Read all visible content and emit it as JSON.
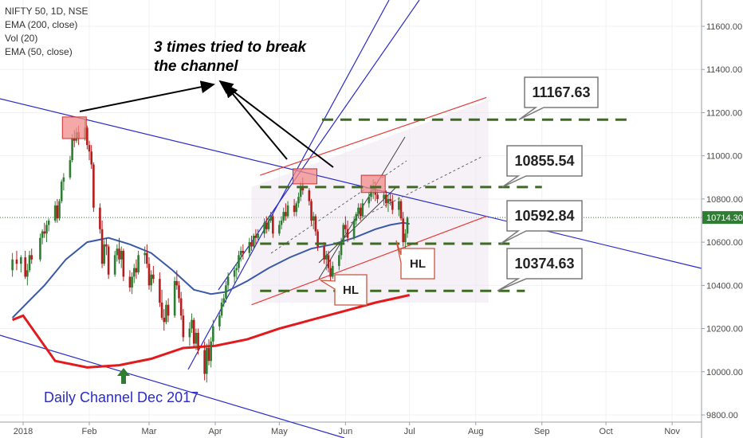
{
  "symbol_line": "NIFTY 50, 1D, NSE",
  "indicators": [
    "EMA (200, close)",
    "Vol (20)",
    "EMA (50, close)"
  ],
  "annotation": [
    "3 times tried to break",
    "the channel"
  ],
  "channel_label": "Daily Channel Dec 2017",
  "hl_labels": [
    "HL",
    "HL"
  ],
  "colors": {
    "up": "#2e7d32",
    "down": "#b71c1c",
    "ema200": "#e31a1c",
    "ema50": "#3a5aa8",
    "blue_lines": "#2b2bc8",
    "red_channel": "#e53935",
    "green_levels": "#3d6b22",
    "box_fill": "#ece6ee",
    "last_price_bg": "#2e7d32"
  },
  "chart_data": {
    "type": "candlestick",
    "y_axis": {
      "side": "right",
      "range": [
        9780,
        11700
      ],
      "ticks": [
        "11600.00",
        "11400.00",
        "11200.00",
        "11000.00",
        "10800.00",
        "10600.00",
        "10400.00",
        "10200.00",
        "10000.00",
        "9800.00"
      ]
    },
    "x_axis": {
      "ticks": [
        "2018",
        "Feb",
        "Mar",
        "Apr",
        "May",
        "Jun",
        "Jul",
        "Aug",
        "Sep",
        "Oct",
        "Nov"
      ],
      "tick_days": [
        0,
        31,
        59,
        90,
        120,
        151,
        181,
        212,
        243,
        273,
        304
      ]
    },
    "last_price": "10714.30",
    "level_callouts": [
      {
        "label": "11167.63",
        "value": 11167.63
      },
      {
        "label": "10855.54",
        "value": 10855.54
      },
      {
        "label": "10592.84",
        "value": 10592.84
      },
      {
        "label": "10374.63",
        "value": 10374.63
      }
    ],
    "green_levels": [
      {
        "value": 11167.63,
        "from_day": 140,
        "to_day": 285
      },
      {
        "value": 10855.54,
        "from_day": 111,
        "to_day": 243
      },
      {
        "value": 10592.84,
        "from_day": 111,
        "to_day": 230
      },
      {
        "value": 10374.63,
        "from_day": 111,
        "to_day": 235
      }
    ],
    "resistance_boxes": [
      {
        "day": 24,
        "low": 11080,
        "high": 11180
      },
      {
        "day": 132,
        "low": 10870,
        "high": 10940
      },
      {
        "day": 164,
        "low": 10830,
        "high": 10910
      }
    ],
    "candles": [
      {
        "day": -5,
        "o": 10470,
        "h": 10550,
        "l": 10440,
        "c": 10520
      },
      {
        "day": -3,
        "o": 10520,
        "h": 10560,
        "l": 10470,
        "c": 10500
      },
      {
        "day": -1,
        "o": 10500,
        "h": 10540,
        "l": 10460,
        "c": 10530
      },
      {
        "day": 1,
        "o": 10530,
        "h": 10560,
        "l": 10430,
        "c": 10440
      },
      {
        "day": 2,
        "o": 10440,
        "h": 10500,
        "l": 10400,
        "c": 10470
      },
      {
        "day": 3,
        "o": 10470,
        "h": 10560,
        "l": 10460,
        "c": 10540
      },
      {
        "day": 4,
        "o": 10540,
        "h": 10570,
        "l": 10500,
        "c": 10520
      },
      {
        "day": 8,
        "o": 10520,
        "h": 10640,
        "l": 10510,
        "c": 10620
      },
      {
        "day": 9,
        "o": 10620,
        "h": 10660,
        "l": 10590,
        "c": 10650
      },
      {
        "day": 10,
        "o": 10650,
        "h": 10690,
        "l": 10620,
        "c": 10640
      },
      {
        "day": 11,
        "o": 10640,
        "h": 10700,
        "l": 10600,
        "c": 10680
      },
      {
        "day": 12,
        "o": 10680,
        "h": 10710,
        "l": 10650,
        "c": 10700
      },
      {
        "day": 15,
        "o": 10700,
        "h": 10790,
        "l": 10690,
        "c": 10770
      },
      {
        "day": 16,
        "o": 10770,
        "h": 10800,
        "l": 10690,
        "c": 10710
      },
      {
        "day": 17,
        "o": 10710,
        "h": 10800,
        "l": 10700,
        "c": 10790
      },
      {
        "day": 18,
        "o": 10790,
        "h": 10890,
        "l": 10780,
        "c": 10880
      },
      {
        "day": 19,
        "o": 10880,
        "h": 10920,
        "l": 10840,
        "c": 10900
      },
      {
        "day": 22,
        "o": 10900,
        "h": 11000,
        "l": 10890,
        "c": 10980
      },
      {
        "day": 23,
        "o": 10980,
        "h": 11100,
        "l": 10970,
        "c": 11080
      },
      {
        "day": 24,
        "o": 11080,
        "h": 11120,
        "l": 11040,
        "c": 11070
      },
      {
        "day": 25,
        "o": 11070,
        "h": 11130,
        "l": 11060,
        "c": 11110
      },
      {
        "day": 26,
        "o": 11110,
        "h": 11140,
        "l": 11050,
        "c": 11080
      },
      {
        "day": 29,
        "o": 11080,
        "h": 11170,
        "l": 11070,
        "c": 11130
      },
      {
        "day": 30,
        "o": 11130,
        "h": 11140,
        "l": 11030,
        "c": 11050
      },
      {
        "day": 31,
        "o": 11050,
        "h": 11070,
        "l": 10980,
        "c": 11020
      },
      {
        "day": 32,
        "o": 11020,
        "h": 11050,
        "l": 10940,
        "c": 10960
      },
      {
        "day": 33,
        "o": 10960,
        "h": 10970,
        "l": 10740,
        "c": 10760
      },
      {
        "day": 36,
        "o": 10760,
        "h": 10780,
        "l": 10640,
        "c": 10660
      },
      {
        "day": 37,
        "o": 10660,
        "h": 10700,
        "l": 10480,
        "c": 10500
      },
      {
        "day": 38,
        "o": 10500,
        "h": 10610,
        "l": 10490,
        "c": 10590
      },
      {
        "day": 39,
        "o": 10590,
        "h": 10620,
        "l": 10540,
        "c": 10580
      },
      {
        "day": 40,
        "o": 10580,
        "h": 10590,
        "l": 10430,
        "c": 10450
      },
      {
        "day": 43,
        "o": 10450,
        "h": 10560,
        "l": 10440,
        "c": 10540
      },
      {
        "day": 44,
        "o": 10540,
        "h": 10590,
        "l": 10510,
        "c": 10570
      },
      {
        "day": 45,
        "o": 10570,
        "h": 10620,
        "l": 10500,
        "c": 10520
      },
      {
        "day": 46,
        "o": 10520,
        "h": 10580,
        "l": 10480,
        "c": 10560
      },
      {
        "day": 47,
        "o": 10560,
        "h": 10570,
        "l": 10420,
        "c": 10440
      },
      {
        "day": 50,
        "o": 10440,
        "h": 10470,
        "l": 10370,
        "c": 10390
      },
      {
        "day": 51,
        "o": 10390,
        "h": 10460,
        "l": 10360,
        "c": 10440
      },
      {
        "day": 52,
        "o": 10440,
        "h": 10500,
        "l": 10410,
        "c": 10480
      },
      {
        "day": 53,
        "o": 10480,
        "h": 10520,
        "l": 10430,
        "c": 10460
      },
      {
        "day": 54,
        "o": 10460,
        "h": 10560,
        "l": 10450,
        "c": 10540
      },
      {
        "day": 57,
        "o": 10540,
        "h": 10580,
        "l": 10500,
        "c": 10550
      },
      {
        "day": 58,
        "o": 10550,
        "h": 10590,
        "l": 10480,
        "c": 10500
      },
      {
        "day": 59,
        "o": 10500,
        "h": 10530,
        "l": 10380,
        "c": 10400
      },
      {
        "day": 60,
        "o": 10400,
        "h": 10470,
        "l": 10370,
        "c": 10450
      },
      {
        "day": 61,
        "o": 10450,
        "h": 10490,
        "l": 10410,
        "c": 10430
      },
      {
        "day": 64,
        "o": 10430,
        "h": 10460,
        "l": 10300,
        "c": 10320
      },
      {
        "day": 65,
        "o": 10320,
        "h": 10380,
        "l": 10240,
        "c": 10250
      },
      {
        "day": 66,
        "o": 10250,
        "h": 10290,
        "l": 10190,
        "c": 10230
      },
      {
        "day": 67,
        "o": 10230,
        "h": 10330,
        "l": 10220,
        "c": 10310
      },
      {
        "day": 68,
        "o": 10310,
        "h": 10340,
        "l": 10230,
        "c": 10260
      },
      {
        "day": 71,
        "o": 10260,
        "h": 10440,
        "l": 10250,
        "c": 10420
      },
      {
        "day": 72,
        "o": 10420,
        "h": 10470,
        "l": 10380,
        "c": 10400
      },
      {
        "day": 73,
        "o": 10400,
        "h": 10420,
        "l": 10320,
        "c": 10340
      },
      {
        "day": 74,
        "o": 10340,
        "h": 10370,
        "l": 10240,
        "c": 10260
      },
      {
        "day": 75,
        "o": 10260,
        "h": 10290,
        "l": 10140,
        "c": 10160
      },
      {
        "day": 78,
        "o": 10160,
        "h": 10230,
        "l": 10120,
        "c": 10200
      },
      {
        "day": 79,
        "o": 10200,
        "h": 10270,
        "l": 10180,
        "c": 10240
      },
      {
        "day": 80,
        "o": 10240,
        "h": 10250,
        "l": 10110,
        "c": 10130
      },
      {
        "day": 81,
        "o": 10130,
        "h": 10200,
        "l": 10100,
        "c": 10180
      },
      {
        "day": 82,
        "o": 10180,
        "h": 10200,
        "l": 10080,
        "c": 10100
      },
      {
        "day": 85,
        "o": 10100,
        "h": 10140,
        "l": 9960,
        "c": 9990
      },
      {
        "day": 86,
        "o": 9990,
        "h": 10130,
        "l": 9950,
        "c": 10110
      },
      {
        "day": 87,
        "o": 10110,
        "h": 10150,
        "l": 10030,
        "c": 10050
      },
      {
        "day": 88,
        "o": 10050,
        "h": 10160,
        "l": 10020,
        "c": 10140
      },
      {
        "day": 89,
        "o": 10140,
        "h": 10240,
        "l": 10120,
        "c": 10210
      },
      {
        "day": 92,
        "o": 10210,
        "h": 10280,
        "l": 10190,
        "c": 10260
      },
      {
        "day": 93,
        "o": 10260,
        "h": 10340,
        "l": 10250,
        "c": 10320
      },
      {
        "day": 94,
        "o": 10320,
        "h": 10360,
        "l": 10300,
        "c": 10340
      },
      {
        "day": 95,
        "o": 10340,
        "h": 10420,
        "l": 10320,
        "c": 10400
      },
      {
        "day": 96,
        "o": 10400,
        "h": 10460,
        "l": 10380,
        "c": 10440
      },
      {
        "day": 99,
        "o": 10440,
        "h": 10490,
        "l": 10410,
        "c": 10470
      },
      {
        "day": 100,
        "o": 10470,
        "h": 10500,
        "l": 10430,
        "c": 10480
      },
      {
        "day": 101,
        "o": 10480,
        "h": 10560,
        "l": 10460,
        "c": 10540
      },
      {
        "day": 102,
        "o": 10540,
        "h": 10580,
        "l": 10510,
        "c": 10560
      },
      {
        "day": 103,
        "o": 10560,
        "h": 10590,
        "l": 10520,
        "c": 10550
      },
      {
        "day": 106,
        "o": 10550,
        "h": 10620,
        "l": 10530,
        "c": 10600
      },
      {
        "day": 107,
        "o": 10600,
        "h": 10630,
        "l": 10560,
        "c": 10580
      },
      {
        "day": 108,
        "o": 10580,
        "h": 10640,
        "l": 10570,
        "c": 10630
      },
      {
        "day": 109,
        "o": 10630,
        "h": 10660,
        "l": 10590,
        "c": 10620
      },
      {
        "day": 110,
        "o": 10620,
        "h": 10660,
        "l": 10600,
        "c": 10640
      },
      {
        "day": 113,
        "o": 10640,
        "h": 10710,
        "l": 10620,
        "c": 10690
      },
      {
        "day": 114,
        "o": 10690,
        "h": 10720,
        "l": 10640,
        "c": 10660
      },
      {
        "day": 115,
        "o": 10660,
        "h": 10720,
        "l": 10650,
        "c": 10700
      },
      {
        "day": 116,
        "o": 10700,
        "h": 10740,
        "l": 10690,
        "c": 10720
      },
      {
        "day": 117,
        "o": 10720,
        "h": 10730,
        "l": 10620,
        "c": 10640
      },
      {
        "day": 120,
        "o": 10640,
        "h": 10700,
        "l": 10630,
        "c": 10680
      },
      {
        "day": 121,
        "o": 10680,
        "h": 10720,
        "l": 10660,
        "c": 10700
      },
      {
        "day": 122,
        "o": 10700,
        "h": 10760,
        "l": 10690,
        "c": 10740
      },
      {
        "day": 123,
        "o": 10740,
        "h": 10780,
        "l": 10700,
        "c": 10720
      },
      {
        "day": 124,
        "o": 10720,
        "h": 10790,
        "l": 10710,
        "c": 10770
      },
      {
        "day": 127,
        "o": 10770,
        "h": 10800,
        "l": 10720,
        "c": 10740
      },
      {
        "day": 128,
        "o": 10740,
        "h": 10790,
        "l": 10720,
        "c": 10780
      },
      {
        "day": 129,
        "o": 10780,
        "h": 10830,
        "l": 10760,
        "c": 10810
      },
      {
        "day": 130,
        "o": 10810,
        "h": 10880,
        "l": 10790,
        "c": 10860
      },
      {
        "day": 131,
        "o": 10860,
        "h": 10900,
        "l": 10820,
        "c": 10840
      },
      {
        "day": 134,
        "o": 10840,
        "h": 10850,
        "l": 10770,
        "c": 10790
      },
      {
        "day": 135,
        "o": 10790,
        "h": 10800,
        "l": 10680,
        "c": 10700
      },
      {
        "day": 136,
        "o": 10700,
        "h": 10740,
        "l": 10660,
        "c": 10720
      },
      {
        "day": 137,
        "o": 10720,
        "h": 10730,
        "l": 10630,
        "c": 10650
      },
      {
        "day": 138,
        "o": 10650,
        "h": 10660,
        "l": 10560,
        "c": 10580
      },
      {
        "day": 141,
        "o": 10580,
        "h": 10600,
        "l": 10500,
        "c": 10520
      },
      {
        "day": 142,
        "o": 10520,
        "h": 10560,
        "l": 10470,
        "c": 10540
      },
      {
        "day": 143,
        "o": 10540,
        "h": 10560,
        "l": 10460,
        "c": 10480
      },
      {
        "day": 144,
        "o": 10480,
        "h": 10520,
        "l": 10420,
        "c": 10440
      },
      {
        "day": 145,
        "o": 10440,
        "h": 10510,
        "l": 10430,
        "c": 10490
      },
      {
        "day": 148,
        "o": 10490,
        "h": 10560,
        "l": 10470,
        "c": 10540
      },
      {
        "day": 149,
        "o": 10540,
        "h": 10620,
        "l": 10520,
        "c": 10600
      },
      {
        "day": 150,
        "o": 10600,
        "h": 10690,
        "l": 10590,
        "c": 10680
      },
      {
        "day": 151,
        "o": 10680,
        "h": 10720,
        "l": 10640,
        "c": 10660
      },
      {
        "day": 152,
        "o": 10660,
        "h": 10700,
        "l": 10600,
        "c": 10620
      },
      {
        "day": 155,
        "o": 10620,
        "h": 10720,
        "l": 10610,
        "c": 10700
      },
      {
        "day": 156,
        "o": 10700,
        "h": 10740,
        "l": 10680,
        "c": 10730
      },
      {
        "day": 157,
        "o": 10730,
        "h": 10780,
        "l": 10710,
        "c": 10760
      },
      {
        "day": 158,
        "o": 10760,
        "h": 10780,
        "l": 10700,
        "c": 10720
      },
      {
        "day": 159,
        "o": 10720,
        "h": 10800,
        "l": 10710,
        "c": 10780
      },
      {
        "day": 162,
        "o": 10780,
        "h": 10830,
        "l": 10760,
        "c": 10810
      },
      {
        "day": 163,
        "o": 10810,
        "h": 10860,
        "l": 10790,
        "c": 10840
      },
      {
        "day": 164,
        "o": 10840,
        "h": 10890,
        "l": 10800,
        "c": 10850
      },
      {
        "day": 165,
        "o": 10850,
        "h": 10880,
        "l": 10790,
        "c": 10820
      },
      {
        "day": 166,
        "o": 10820,
        "h": 10840,
        "l": 10780,
        "c": 10800
      },
      {
        "day": 169,
        "o": 10800,
        "h": 10840,
        "l": 10770,
        "c": 10820
      },
      {
        "day": 170,
        "o": 10820,
        "h": 10840,
        "l": 10760,
        "c": 10780
      },
      {
        "day": 171,
        "o": 10780,
        "h": 10820,
        "l": 10740,
        "c": 10800
      },
      {
        "day": 172,
        "o": 10800,
        "h": 10830,
        "l": 10770,
        "c": 10790
      },
      {
        "day": 173,
        "o": 10790,
        "h": 10820,
        "l": 10730,
        "c": 10750
      },
      {
        "day": 176,
        "o": 10750,
        "h": 10810,
        "l": 10720,
        "c": 10790
      },
      {
        "day": 177,
        "o": 10790,
        "h": 10800,
        "l": 10700,
        "c": 10710
      },
      {
        "day": 178,
        "o": 10710,
        "h": 10740,
        "l": 10580,
        "c": 10600
      },
      {
        "day": 179,
        "o": 10600,
        "h": 10660,
        "l": 10560,
        "c": 10640
      },
      {
        "day": 180,
        "o": 10640,
        "h": 10720,
        "l": 10620,
        "c": 10714
      }
    ]
  }
}
